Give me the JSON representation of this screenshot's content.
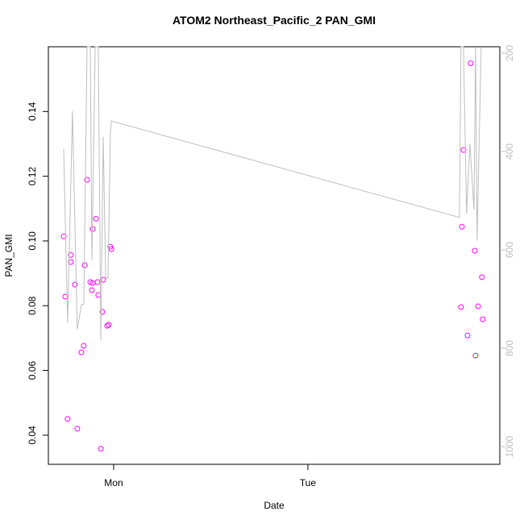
{
  "chart_data": {
    "type": "scatter",
    "title": "ATOM2 Northeast_Pacific_2 PAN_GMI",
    "x_label": "Date",
    "y_label": "PAN_GMI",
    "xlim": [
      0.664,
      2.988
    ],
    "xticks": [
      {
        "value": 1,
        "label": "Mon"
      },
      {
        "value": 2,
        "label": "Tue"
      }
    ],
    "ylim": [
      0.031,
      0.16
    ],
    "yticks": [
      0.04,
      0.06,
      0.08,
      {
        "value": 0.1,
        "label": "0.10"
      },
      0.12,
      0.14
    ],
    "y2lim": [
      1036,
      187
    ],
    "y2ticks": [
      200,
      400,
      600,
      800,
      1000
    ],
    "series": [
      {
        "color": "#ff00ff",
        "x": [
          0.743,
          0.751,
          0.763,
          0.78,
          0.78,
          0.801,
          0.813,
          0.834,
          0.846,
          0.851,
          0.863,
          0.88,
          0.888,
          0.892,
          0.892,
          0.909,
          0.917,
          0.921,
          0.934,
          0.942,
          0.946,
          0.967,
          0.975,
          0.983,
          0.988,
          2.788,
          2.793,
          2.801,
          2.822,
          2.838,
          2.859,
          2.863,
          2.876,
          2.896,
          2.9
        ],
        "values": [
          0.1014,
          0.0828,
          0.045,
          0.0957,
          0.0935,
          0.0865,
          0.042,
          0.0656,
          0.0676,
          0.0925,
          0.1189,
          0.0873,
          0.0848,
          0.087,
          0.1037,
          0.1069,
          0.0873,
          0.0833,
          0.0358,
          0.0781,
          0.088,
          0.0738,
          0.0741,
          0.0982,
          0.0975,
          0.0796,
          0.1044,
          0.1281,
          0.0708,
          0.1549,
          0.097,
          0.0646,
          0.0798,
          0.0888,
          0.0758
        ]
      },
      {
        "color": "#bebebe",
        "axis": "y2",
        "x": [
          0.743,
          0.763,
          0.788,
          0.813,
          0.834,
          0.846,
          0.863,
          0.88,
          0.888,
          0.905,
          0.921,
          0.934,
          0.946,
          0.959,
          0.971,
          0.983,
          0.988,
          2.78,
          2.788,
          2.801,
          2.817,
          2.834,
          2.855,
          2.863,
          2.871,
          2.892
        ],
        "values": [
          395,
          748,
          318,
          761,
          711,
          711,
          187,
          187,
          621,
          187,
          187,
          784,
          370,
          657,
          657,
          366,
          338,
          534,
          187,
          187,
          526,
          384,
          518,
          187,
          580,
          187
        ]
      }
    ]
  }
}
